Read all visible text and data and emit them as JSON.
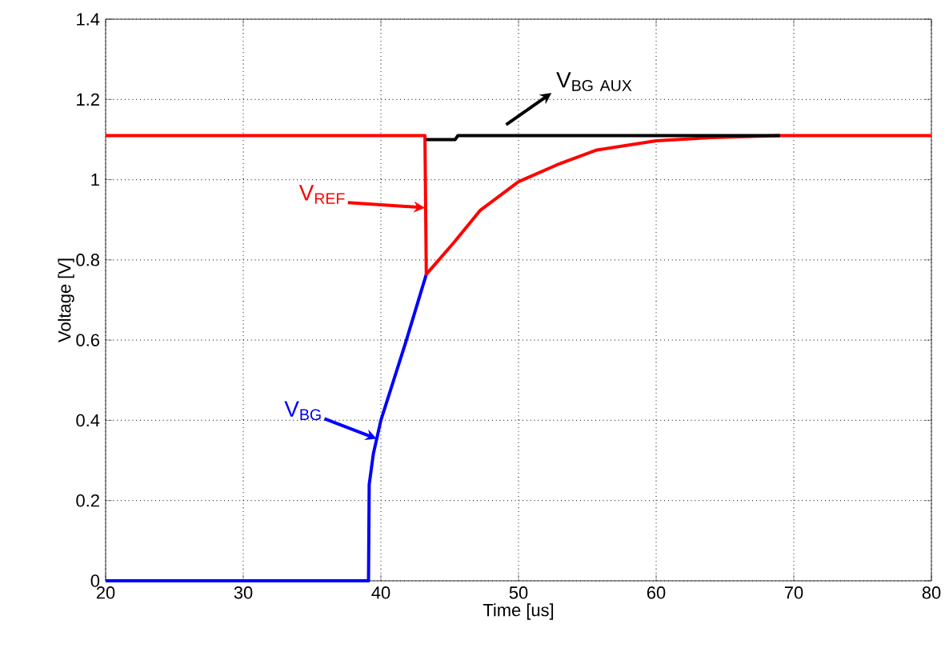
{
  "chart_data": {
    "type": "line",
    "xlabel": "Time [us]",
    "ylabel": "Voltage [V]",
    "xlim": [
      20,
      80
    ],
    "xticks": [
      20,
      30,
      40,
      50,
      60,
      70,
      80
    ],
    "ylim": [
      0,
      1.4
    ],
    "yticks": [
      0,
      0.2,
      0.4,
      0.6,
      0.8,
      1,
      1.2,
      1.4
    ],
    "grid": true,
    "line_style": "solid",
    "series": [
      {
        "color": "#000000",
        "x": [
          43.3,
          45.4,
          45.6,
          69
        ],
        "values": [
          1.1,
          1.1,
          1.11,
          1.11
        ]
      },
      {
        "color": "#ff0000",
        "x": [
          20,
          43.2,
          43.3,
          45.3,
          47.2,
          50,
          53,
          55.7,
          60,
          64,
          69,
          80
        ],
        "values": [
          1.11,
          1.11,
          0.764,
          0.843,
          0.923,
          0.995,
          1.04,
          1.074,
          1.097,
          1.105,
          1.11,
          1.11
        ]
      },
      {
        "color": "#0000ff",
        "x": [
          20,
          39.1,
          39.15,
          39.45,
          40,
          41.8,
          43.3
        ],
        "values": [
          0,
          0,
          0.24,
          0.316,
          0.4,
          0.594,
          0.764
        ]
      }
    ],
    "annotations": [
      "\\mathrm{V}_{\\mathrm{BG\\ AUX}}",
      "\\mathrm{V}_{\\mathrm{REF}}",
      {
        "text": "\\mathrm{V}_{\\mathrm{BG}}",
        "x": 39.7,
        "y": 0.354
      }
    ]
  }
}
